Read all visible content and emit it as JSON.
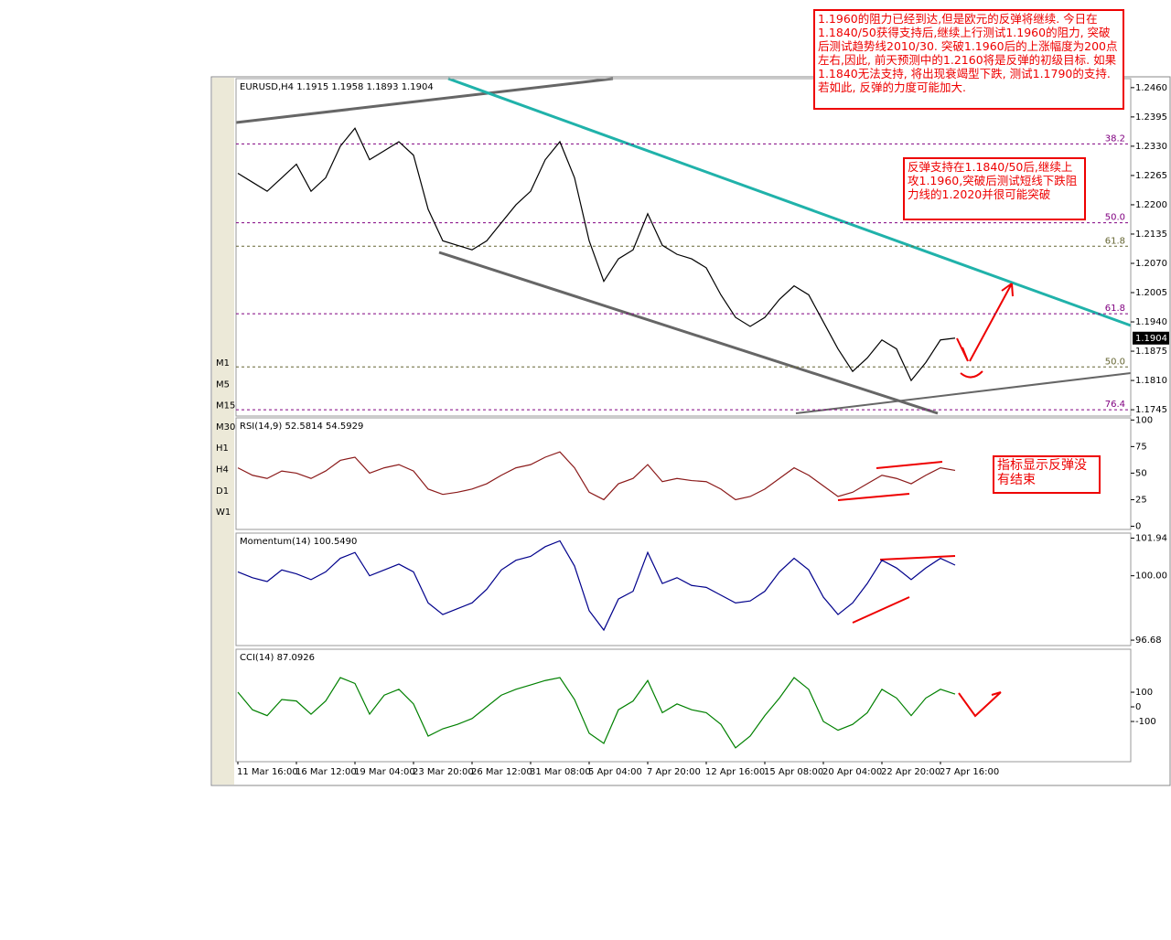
{
  "chart_data": [
    {
      "type": "line",
      "title": "EURUSD,H4  1.1915 1.1958 1.1893 1.1904",
      "color": "#000000",
      "values": [
        1.227,
        1.225,
        1.223,
        1.226,
        1.229,
        1.223,
        1.226,
        1.233,
        1.237,
        1.23,
        1.232,
        1.234,
        1.231,
        1.219,
        1.212,
        1.211,
        1.21,
        1.212,
        1.216,
        1.22,
        1.223,
        1.23,
        1.234,
        1.226,
        1.212,
        1.203,
        1.208,
        1.21,
        1.218,
        1.211,
        1.209,
        1.208,
        1.206,
        1.2,
        1.195,
        1.193,
        1.195,
        1.199,
        1.202,
        1.2,
        1.194,
        1.188,
        1.183,
        1.186,
        1.19,
        1.188,
        1.181,
        1.185,
        1.19,
        1.1904
      ],
      "ylim": [
        1.1731,
        1.248
      ],
      "yticks": [
        {
          "value": 1.246,
          "label": "1.2460"
        },
        {
          "value": 1.2395,
          "label": "1.2395"
        },
        {
          "value": 1.233,
          "label": "1.2330"
        },
        {
          "value": 1.2265,
          "label": "1.2265"
        },
        {
          "value": 1.22,
          "label": "1.2200"
        },
        {
          "value": 1.2135,
          "label": "1.2135"
        },
        {
          "value": 1.207,
          "label": "1.2070"
        },
        {
          "value": 1.2005,
          "label": "1.2005"
        },
        {
          "value": 1.194,
          "label": "1.1940"
        },
        {
          "value": 1.1875,
          "label": "1.1875"
        },
        {
          "value": 1.181,
          "label": "1.1810"
        },
        {
          "value": 1.1745,
          "label": "1.1745"
        }
      ],
      "last_price": 1.1904,
      "levels": [
        {
          "value": 1.2335,
          "label": "38.2",
          "color": "#800080"
        },
        {
          "value": 1.216,
          "label": "50.0",
          "color": "#800080"
        },
        {
          "value": 1.2108,
          "label": "61.8",
          "color": "#666633"
        },
        {
          "value": 1.1958,
          "label": "61.8",
          "color": "#800080"
        },
        {
          "value": 1.184,
          "label": "50.0",
          "color": "#666633"
        },
        {
          "value": 1.1745,
          "label": "76.4",
          "color": "#800080"
        }
      ]
    },
    {
      "type": "line",
      "title": "RSI(14,9)  52.5814  54.5929",
      "color": "#8b1a1a",
      "values": [
        55,
        48,
        45,
        52,
        50,
        45,
        52,
        62,
        65,
        50,
        55,
        58,
        52,
        35,
        30,
        32,
        35,
        40,
        48,
        55,
        58,
        65,
        70,
        55,
        32,
        25,
        40,
        45,
        58,
        42,
        45,
        43,
        42,
        35,
        25,
        28,
        35,
        45,
        55,
        48,
        38,
        28,
        32,
        40,
        48,
        45,
        40,
        48,
        55,
        52.58
      ],
      "ylim": [
        -3,
        102
      ],
      "yticks": [
        100,
        75,
        50,
        25,
        0
      ]
    },
    {
      "type": "line",
      "title": "Momentum(14)  100.5490",
      "color": "#00008b",
      "values": [
        100.2,
        99.9,
        99.7,
        100.3,
        100.1,
        99.8,
        100.2,
        100.9,
        101.2,
        100.0,
        100.3,
        100.6,
        100.2,
        98.6,
        98.0,
        98.3,
        98.6,
        99.3,
        100.3,
        100.8,
        101.0,
        101.5,
        101.8,
        100.5,
        98.2,
        97.2,
        98.8,
        99.2,
        101.2,
        99.6,
        99.9,
        99.5,
        99.4,
        99.0,
        98.6,
        98.7,
        99.2,
        100.2,
        100.9,
        100.3,
        98.9,
        98.0,
        98.6,
        99.6,
        100.8,
        100.4,
        99.8,
        100.4,
        100.9,
        100.549
      ],
      "ylim": [
        96.4,
        102.2
      ],
      "yticks": [
        101.94,
        {
          "value": 100,
          "label": "100.00"
        },
        96.68
      ]
    },
    {
      "type": "line",
      "title": "CCI(14)  87.0926",
      "color": "#008000",
      "categories": [
        "11 Mar 16:00",
        null,
        null,
        null,
        "16 Mar 12:00",
        null,
        null,
        null,
        "19 Mar 04:00",
        null,
        null,
        null,
        "23 Mar 20:00",
        null,
        null,
        null,
        "26 Mar 12:00",
        null,
        null,
        null,
        "31 Mar 08:00",
        null,
        null,
        null,
        "5 Apr 04:00",
        null,
        null,
        null,
        "7 Apr 20:00",
        null,
        null,
        null,
        "12 Apr 16:00",
        null,
        null,
        null,
        "15 Apr 08:00",
        null,
        null,
        null,
        "20 Apr 04:00",
        null,
        null,
        null,
        "22 Apr 20:00",
        null,
        null,
        null,
        "27 Apr 16:00",
        null
      ],
      "values": [
        100,
        -20,
        -60,
        50,
        40,
        -50,
        40,
        200,
        160,
        -50,
        80,
        120,
        20,
        -200,
        -150,
        -120,
        -80,
        0,
        80,
        120,
        150,
        180,
        200,
        50,
        -180,
        -250,
        -20,
        40,
        180,
        -40,
        20,
        -20,
        -40,
        -120,
        -280,
        -200,
        -60,
        60,
        200,
        120,
        -100,
        -160,
        -120,
        -40,
        120,
        60,
        -60,
        60,
        120,
        87.09
      ],
      "ylim": [
        -375,
        394
      ],
      "yticks": [
        100,
        0,
        -100
      ]
    }
  ],
  "toolbar": {
    "timeframes": [
      "M1",
      "M5",
      "M15",
      "M30",
      "H1",
      "H4",
      "D1",
      "W1"
    ]
  },
  "notes": [
    "1.1960的阻力已经到达,但是欧元的反弹将继续. 今日在1.1840/50获得支持后,继续上行测试1.1960的阻力, 突破后测试趋势线2010/30. 突破1.1960后的上涨幅度为200点左右,因此, 前天预测中的1.2160将是反弹的初级目标. 如果1.1840无法支持, 将出现衰竭型下跌, 测试1.1790的支持. 若如此, 反弹的力度可能加大.",
    "反弹支持在1.1840/50后,继续上攻1.1960,突破后测试短线下跌阻力线的1.2020并很可能突破",
    "指标显示反弹没有结束"
  ]
}
